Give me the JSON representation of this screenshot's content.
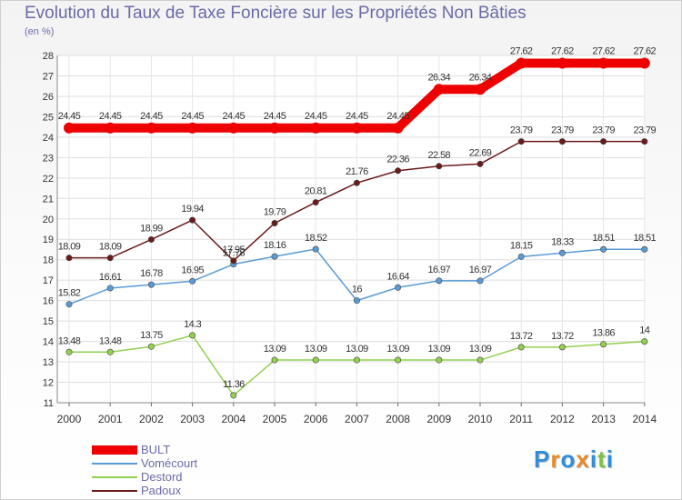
{
  "title": "Evolution du Taux de Taxe Foncière sur les Propriétés Non Bâties",
  "subtitle": "(en %)",
  "logo": {
    "text": "Proxiti",
    "colors": [
      "#2f8fd8",
      "#e98a2a",
      "#2f8fd8",
      "#e98a2a",
      "#2f8fd8",
      "#7dc143",
      "#2f8fd8"
    ]
  },
  "chart_data": {
    "type": "line",
    "title": "Evolution du Taux de Taxe Foncière sur les Propriétés Non Bâties",
    "ylabel": "(en %)",
    "xlabel": "",
    "ylim": [
      11,
      28
    ],
    "yticks": [
      "11",
      "12",
      "13",
      "14",
      "15",
      "16",
      "17",
      "18",
      "19",
      "20",
      "21",
      "22",
      "23",
      "24",
      "25",
      "26",
      "27",
      "28"
    ],
    "x": [
      "2000",
      "2001",
      "2002",
      "2003",
      "2004",
      "2005",
      "2006",
      "2007",
      "2008",
      "2009",
      "2010",
      "2011",
      "2012",
      "2013",
      "2014"
    ],
    "grid": true,
    "legend_position": "bottom-left",
    "series": [
      {
        "name": "BULT",
        "color": "#ee0000",
        "values": [
          24.45,
          24.45,
          24.45,
          24.45,
          24.45,
          24.45,
          24.45,
          24.45,
          24.45,
          26.34,
          26.34,
          27.62,
          27.62,
          27.62,
          27.62
        ],
        "labels": [
          "24.45",
          "24.45",
          "24.45",
          "24.45",
          "24.45",
          "24.45",
          "24.45",
          "24.45",
          "24.45",
          "26.34",
          "26.34",
          "27.62",
          "27.62",
          "27.62",
          "27.62"
        ]
      },
      {
        "name": "Vomécourt",
        "color": "#5b9bd5",
        "values": [
          15.82,
          16.61,
          16.78,
          16.95,
          17.78,
          18.16,
          18.52,
          16,
          16.64,
          16.97,
          16.97,
          18.15,
          18.33,
          18.51,
          18.51
        ],
        "labels": [
          "15.82",
          "16.61",
          "16.78",
          "16.95",
          "17.78",
          "18.16",
          "18.52",
          "16",
          "16.64",
          "16.97",
          "16.97",
          "18.15",
          "18.33",
          "18.51",
          "18.51"
        ]
      },
      {
        "name": "Destord",
        "color": "#92d050",
        "values": [
          13.48,
          13.48,
          13.75,
          14.3,
          11.36,
          13.09,
          13.09,
          13.09,
          13.09,
          13.09,
          13.09,
          13.72,
          13.72,
          13.86,
          14
        ],
        "labels": [
          "13.48",
          "13.48",
          "13.75",
          "14.3",
          "11.36",
          "13.09",
          "13.09",
          "13.09",
          "13.09",
          "13.09",
          "13.09",
          "13.72",
          "13.72",
          "13.86",
          "14"
        ]
      },
      {
        "name": "Padoux",
        "color": "#6b1a1a",
        "values": [
          18.09,
          18.09,
          18.99,
          19.94,
          17.95,
          19.79,
          20.81,
          21.76,
          22.36,
          22.58,
          22.69,
          23.79,
          23.79,
          23.79,
          23.79
        ],
        "labels": [
          "18.09",
          "18.09",
          "18.99",
          "19.94",
          "17.95",
          "19.79",
          "20.81",
          "21.76",
          "22.36",
          "22.58",
          "22.69",
          "23.79",
          "23.79",
          "23.79",
          "23.79"
        ]
      }
    ]
  }
}
